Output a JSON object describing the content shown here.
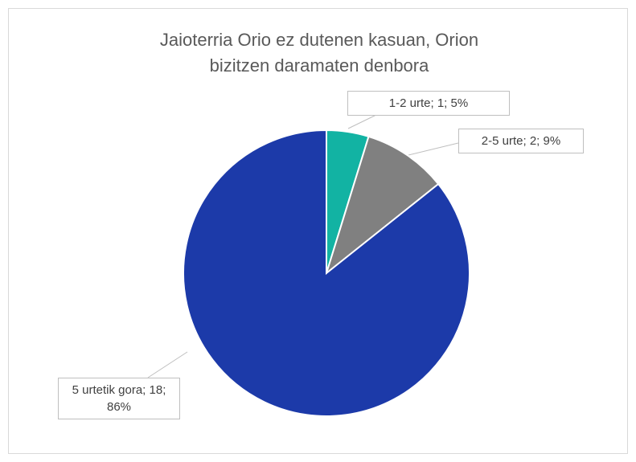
{
  "chart_data": {
    "type": "pie",
    "title": "Jaioterria Orio ez dutenen kasuan, Orion bizitzen daramaten denbora",
    "categories": [
      "1-2 urte",
      "2-5 urte",
      "5 urtetik gora"
    ],
    "values": [
      1,
      2,
      18
    ],
    "value_labels": [
      "1-2 urte; 1; 5%",
      "2-5 urte; 2; 9%",
      "5 urtetik gora; 18; 86%"
    ],
    "colors": [
      "#12b3a3",
      "#808080",
      "#1c3aa9"
    ]
  }
}
